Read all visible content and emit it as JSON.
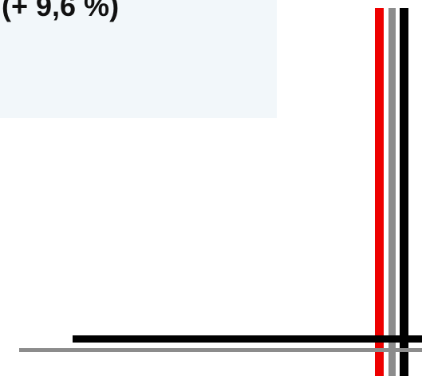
{
  "header": {
    "change_label": "(+ 9,6 %)"
  },
  "colors": {
    "panel_background": "#f2f7fa",
    "accent_red": "#ee0000",
    "rule_gray": "#8c8c8c",
    "rule_black": "#000000",
    "text": "#111111"
  }
}
